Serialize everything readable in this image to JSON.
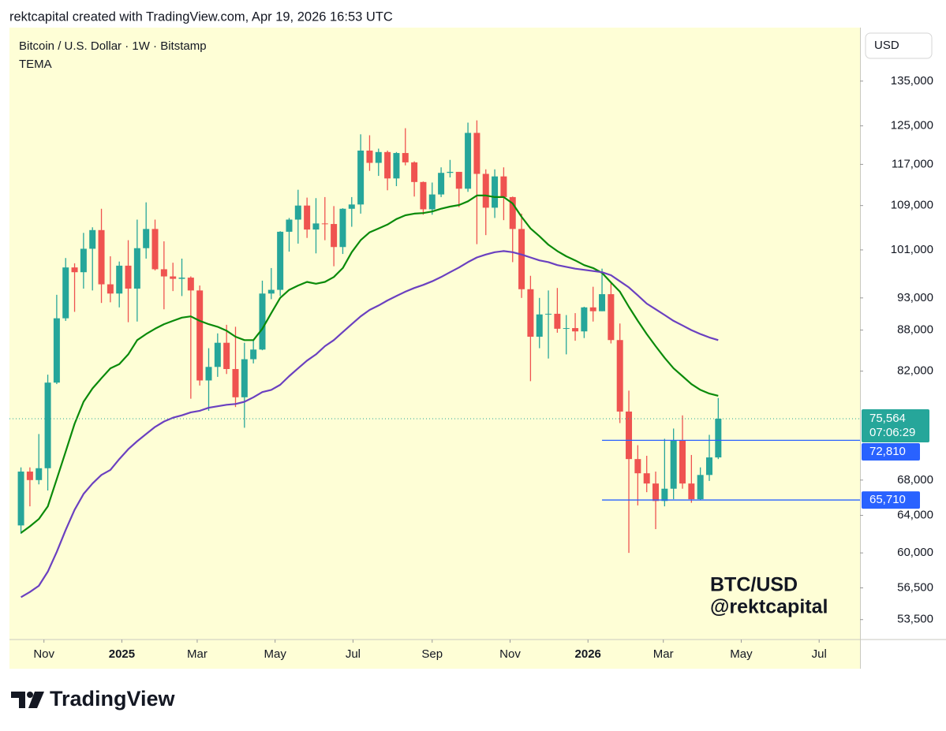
{
  "header": "rektcapital created with TradingView.com, Apr 19, 2026 16:53 UTC",
  "chart_data": {
    "type": "candlestick",
    "title": "Bitcoin / U.S. Dollar · 1W · Bitstamp",
    "indicator": "TEMA",
    "currency": "USD",
    "x": [
      "2024-10-14",
      "2024-10-21",
      "2024-10-28",
      "2024-11-04",
      "2024-11-11",
      "2024-11-18",
      "2024-11-25",
      "2024-12-02",
      "2024-12-09",
      "2024-12-16",
      "2024-12-23",
      "2024-12-30",
      "2025-01-06",
      "2025-01-13",
      "2025-01-20",
      "2025-01-27",
      "2025-02-03",
      "2025-02-10",
      "2025-02-17",
      "2025-02-24",
      "2025-03-03",
      "2025-03-10",
      "2025-03-17",
      "2025-03-24",
      "2025-03-31",
      "2025-04-07",
      "2025-04-14",
      "2025-04-21",
      "2025-04-28",
      "2025-05-05",
      "2025-05-12",
      "2025-05-19",
      "2025-05-26",
      "2025-06-02",
      "2025-06-09",
      "2025-06-16",
      "2025-06-23",
      "2025-06-30",
      "2025-07-07",
      "2025-07-14",
      "2025-07-21",
      "2025-07-28",
      "2025-08-04",
      "2025-08-11",
      "2025-08-18",
      "2025-08-25",
      "2025-09-01",
      "2025-09-08",
      "2025-09-15",
      "2025-09-22",
      "2025-09-29",
      "2025-10-06",
      "2025-10-13",
      "2025-10-20",
      "2025-10-27",
      "2025-11-03",
      "2025-11-10",
      "2025-11-17",
      "2025-11-24",
      "2025-12-01",
      "2025-12-08",
      "2025-12-15",
      "2025-12-22",
      "2025-12-29",
      "2026-01-05",
      "2026-01-12",
      "2026-01-19",
      "2026-01-26",
      "2026-02-02",
      "2026-02-09",
      "2026-02-16",
      "2026-02-23",
      "2026-03-02",
      "2026-03-09",
      "2026-03-16",
      "2026-03-23",
      "2026-03-30",
      "2026-04-06",
      "2026-04-13"
    ],
    "open": [
      62900,
      69000,
      68000,
      69400,
      80400,
      89800,
      98000,
      97200,
      101200,
      104500,
      95200,
      93700,
      98300,
      94500,
      101300,
      104700,
      97700,
      96500,
      96100,
      96300,
      94200,
      80700,
      82600,
      86100,
      82300,
      78400,
      83700,
      85100,
      93700,
      94300,
      104200,
      106400,
      109000,
      104600,
      105700,
      105600,
      101500,
      108400,
      109200,
      119800,
      117300,
      119500,
      114200,
      119300,
      117400,
      113500,
      108300,
      111100,
      115300,
      115500,
      112200,
      123500,
      115100,
      108600,
      114600,
      110600,
      104700,
      94400,
      87000,
      90400,
      90500,
      88200,
      88300,
      87800,
      91500,
      90900,
      93600,
      86500,
      76500,
      70500,
      68800,
      67600,
      65600,
      67000,
      72800,
      67600,
      65800,
      68600,
      70700
    ],
    "high": [
      69500,
      69500,
      73600,
      81500,
      93500,
      99600,
      98700,
      104000,
      105000,
      108400,
      99900,
      99000,
      102700,
      106400,
      109600,
      106400,
      102500,
      98800,
      99500,
      96500,
      95000,
      85300,
      87500,
      88800,
      88500,
      86100,
      86400,
      95800,
      97900,
      104300,
      106700,
      112000,
      110500,
      110400,
      110600,
      108900,
      108500,
      110600,
      123200,
      123000,
      120200,
      119800,
      119500,
      124500,
      117600,
      113600,
      113400,
      116400,
      117900,
      115500,
      125700,
      126200,
      116000,
      116000,
      116400,
      110700,
      107500,
      96600,
      93000,
      94200,
      94600,
      90300,
      90600,
      91600,
      94800,
      97800,
      95500,
      89000,
      79300,
      72200,
      70900,
      69000,
      73000,
      74300,
      76000,
      71000,
      69500,
      73500,
      78300
    ],
    "low": [
      62000,
      65000,
      67500,
      66800,
      80200,
      89400,
      90800,
      94500,
      94200,
      92200,
      92300,
      91500,
      89200,
      89300,
      99500,
      97500,
      91200,
      94100,
      93300,
      78200,
      80000,
      76600,
      81200,
      81600,
      77100,
      74400,
      83100,
      85000,
      92800,
      93300,
      100700,
      102100,
      103100,
      100400,
      102700,
      98200,
      100300,
      105100,
      107500,
      115700,
      114700,
      111900,
      112700,
      116800,
      110700,
      107300,
      107300,
      110600,
      114400,
      108700,
      111600,
      102000,
      103600,
      106700,
      106300,
      98900,
      93000,
      80600,
      85300,
      83800,
      87600,
      84400,
      86400,
      86800,
      89300,
      90900,
      86000,
      75000,
      60000,
      65100,
      66600,
      62500,
      65000,
      65800,
      67000,
      65400,
      65700,
      67900,
      70500
    ],
    "close": [
      69000,
      68000,
      69400,
      80400,
      89800,
      98000,
      97200,
      101200,
      104500,
      95200,
      93700,
      98300,
      94500,
      101300,
      104700,
      97700,
      96500,
      96100,
      96300,
      94200,
      80700,
      82600,
      86100,
      82300,
      78400,
      83700,
      85100,
      93700,
      94300,
      104200,
      106400,
      109000,
      104600,
      105700,
      105600,
      101500,
      108400,
      109200,
      119800,
      117300,
      119500,
      114200,
      119300,
      117400,
      113500,
      108300,
      111100,
      115300,
      115500,
      112200,
      123500,
      115100,
      108600,
      114600,
      110600,
      104700,
      94400,
      87000,
      90400,
      90500,
      88200,
      88300,
      87800,
      91500,
      90900,
      93600,
      86500,
      76500,
      70500,
      68800,
      67600,
      65600,
      67000,
      72800,
      67600,
      65800,
      68600,
      70700,
      75564
    ],
    "up_color": "#26a69a",
    "down_color": "#ef5350",
    "lines": [
      {
        "color": "#0a8a0a",
        "values": [
          62100,
          62800,
          63600,
          65000,
          68100,
          71400,
          74900,
          77800,
          79600,
          81000,
          82400,
          83000,
          84400,
          86500,
          87400,
          88200,
          88900,
          89400,
          89900,
          90100,
          89400,
          88900,
          88500,
          87900,
          87000,
          86500,
          86500,
          88200,
          90600,
          93000,
          94300,
          95000,
          95600,
          95300,
          95600,
          96400,
          97900,
          100600,
          102700,
          104100,
          104800,
          105500,
          106500,
          107200,
          107500,
          107600,
          107900,
          108400,
          108800,
          109100,
          109800,
          110900,
          110900,
          110600,
          110600,
          109400,
          106900,
          104800,
          103400,
          101900,
          100800,
          99900,
          99200,
          98400,
          97900,
          97100,
          95500,
          94000,
          91600,
          89400,
          87400,
          85600,
          83900,
          82400,
          81300,
          80200,
          79400,
          78900,
          78600
        ]
      },
      {
        "color": "#6a40c0",
        "values": [
          55600,
          56100,
          56700,
          58100,
          60100,
          62400,
          64600,
          66400,
          67600,
          68600,
          69200,
          70500,
          71700,
          72700,
          73600,
          74500,
          75200,
          75700,
          76000,
          76400,
          76600,
          77000,
          77200,
          77400,
          77500,
          77800,
          78400,
          79100,
          79400,
          80100,
          81300,
          82400,
          83500,
          84400,
          85600,
          86500,
          87700,
          88900,
          90100,
          91100,
          91800,
          92600,
          93300,
          94000,
          94600,
          95100,
          95700,
          96400,
          97200,
          98000,
          98900,
          99700,
          100200,
          100600,
          100800,
          100600,
          100200,
          99700,
          99200,
          98900,
          98400,
          98100,
          97800,
          97600,
          97400,
          97200,
          96700,
          95700,
          94700,
          93400,
          92100,
          91200,
          90300,
          89400,
          88700,
          88000,
          87400,
          86900,
          86500
        ]
      }
    ],
    "log_scale": true,
    "ylim": [
      51700,
      148000
    ],
    "yticks": [
      {
        "value": 53500,
        "label": "53,500"
      },
      {
        "value": 56500,
        "label": "56,500"
      },
      {
        "value": 60000,
        "label": "60,000"
      },
      {
        "value": 64000,
        "label": "64,000"
      },
      {
        "value": 68000,
        "label": "68,000"
      },
      {
        "value": 82000,
        "label": "82,000"
      },
      {
        "value": 88000,
        "label": "88,000"
      },
      {
        "value": 93000,
        "label": "93,000"
      },
      {
        "value": 101000,
        "label": "101,000"
      },
      {
        "value": 109000,
        "label": "109,000"
      },
      {
        "value": 117000,
        "label": "117,000"
      },
      {
        "value": 125000,
        "label": "125,000"
      },
      {
        "value": 135000,
        "label": "135,000"
      }
    ],
    "xlim": [
      "2024-10-05",
      "2026-08-02"
    ],
    "xticks": [
      {
        "value": "2024-11-01",
        "label": "Nov"
      },
      {
        "value": "2025-01-01",
        "label": "2025"
      },
      {
        "value": "2025-03-01",
        "label": "Mar"
      },
      {
        "value": "2025-05-01",
        "label": "May"
      },
      {
        "value": "2025-07-01",
        "label": "Jul"
      },
      {
        "value": "2025-09-01",
        "label": "Sep"
      },
      {
        "value": "2025-11-01",
        "label": "Nov"
      },
      {
        "value": "2026-01-01",
        "label": "2026"
      },
      {
        "value": "2026-03-01",
        "label": "Mar"
      },
      {
        "value": "2026-05-01",
        "label": "May"
      },
      {
        "value": "2026-07-01",
        "label": "Jul"
      }
    ],
    "last_price": {
      "value": 75564,
      "label": "75,564"
    },
    "countdown": "07:06:29",
    "levels": [
      {
        "value": 72810,
        "label": "72,810",
        "from": "2026-01-12"
      },
      {
        "value": 65710,
        "label": "65,710",
        "from": "2026-01-12"
      }
    ],
    "level_color": "#2962ff",
    "annotation": [
      "BTC/USD",
      "@rektcapital"
    ]
  },
  "footer_logo": "TradingView"
}
